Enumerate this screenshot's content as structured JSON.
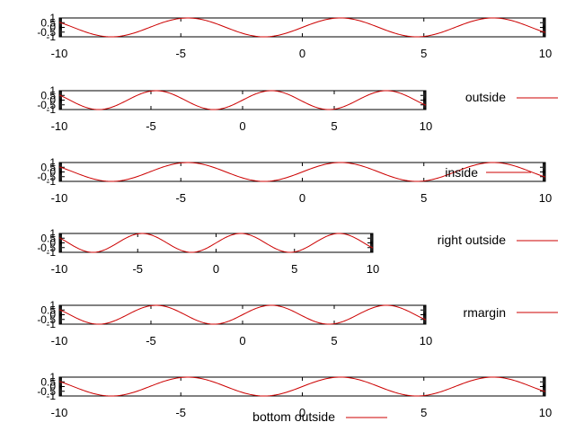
{
  "colors": {
    "curve": "#cc0000",
    "frame": "#000000",
    "background": "#ffffff"
  },
  "chart_data": [
    {
      "type": "line",
      "function": "sin(x)",
      "xlim": [
        -10,
        10
      ],
      "ylim": [
        -1,
        1
      ],
      "xticks": [
        "-10",
        "-5",
        "0",
        "5",
        "10"
      ],
      "yticks": [
        "1",
        "0.5",
        "0",
        "-0.5",
        "-1"
      ],
      "legend_label": "",
      "legend_position": "none",
      "grid": false
    },
    {
      "type": "line",
      "function": "sin(x)",
      "xlim": [
        -10,
        10
      ],
      "ylim": [
        -1,
        1
      ],
      "xticks": [
        "-10",
        "-5",
        "0",
        "5",
        "10"
      ],
      "yticks": [
        "1",
        "0.5",
        "0",
        "-0.5",
        "-1"
      ],
      "legend_label": "outside",
      "legend_position": "outside-right",
      "grid": false
    },
    {
      "type": "line",
      "function": "sin(x)",
      "xlim": [
        -10,
        10
      ],
      "ylim": [
        -1,
        1
      ],
      "xticks": [
        "-10",
        "-5",
        "0",
        "5",
        "10"
      ],
      "yticks": [
        "1",
        "0.5",
        "0",
        "-0.5",
        "-1"
      ],
      "legend_label": "inside",
      "legend_position": "inside-bottom-right",
      "grid": false
    },
    {
      "type": "line",
      "function": "sin(x)",
      "xlim": [
        -10,
        10
      ],
      "ylim": [
        -1,
        1
      ],
      "xticks": [
        "-10",
        "-5",
        "0",
        "5",
        "10"
      ],
      "yticks": [
        "1",
        "0.5",
        "0",
        "-0.5",
        "-1"
      ],
      "legend_label": "right outside",
      "legend_position": "outside-right",
      "grid": false
    },
    {
      "type": "line",
      "function": "sin(x)",
      "xlim": [
        -10,
        10
      ],
      "ylim": [
        -1,
        1
      ],
      "xticks": [
        "-10",
        "-5",
        "0",
        "5",
        "10"
      ],
      "yticks": [
        "1",
        "0.5",
        "0",
        "-0.5",
        "-1"
      ],
      "legend_label": "rmargin",
      "legend_position": "right-margin",
      "grid": false
    },
    {
      "type": "line",
      "function": "sin(x)",
      "xlim": [
        -10,
        10
      ],
      "ylim": [
        -1,
        1
      ],
      "xticks": [
        "-10",
        "-5",
        "0",
        "5",
        "10"
      ],
      "yticks": [
        "1",
        "0.5",
        "0",
        "-0.5",
        "-1"
      ],
      "legend_label": "bottom outside",
      "legend_position": "outside-bottom",
      "grid": false
    }
  ]
}
